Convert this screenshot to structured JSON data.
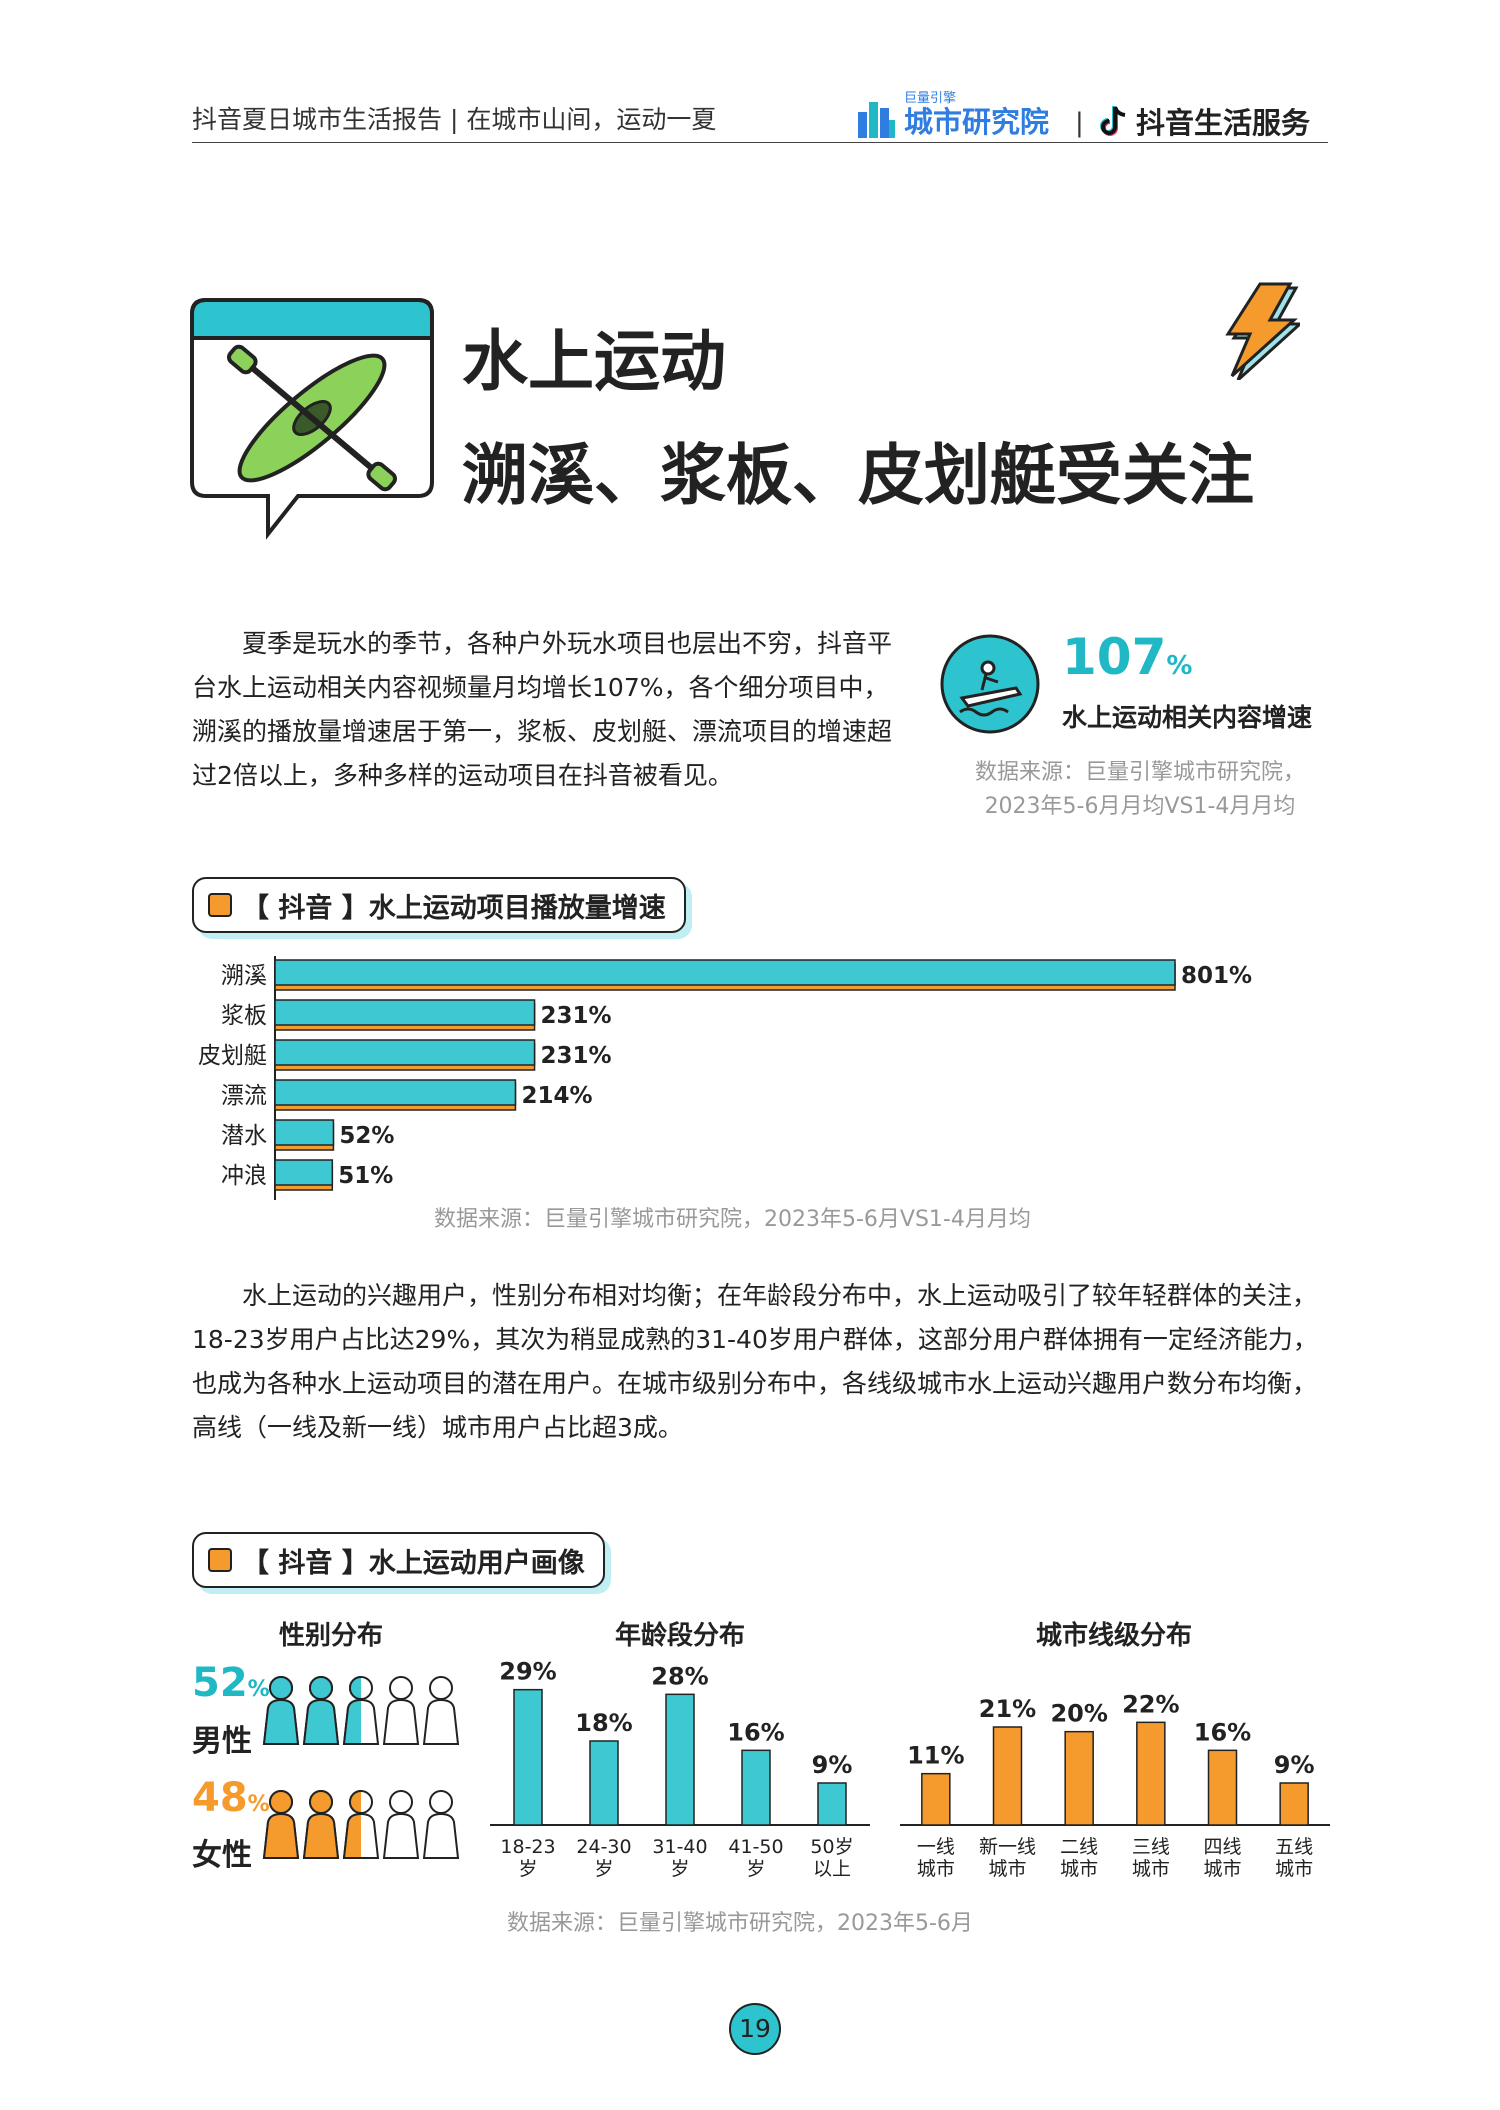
{
  "header": {
    "report_title": "抖音夏日城市生活报告 | 在城市山间，运动一夏",
    "logo_small": "巨量引擎",
    "logo_main": "城市研究院",
    "separator": "|",
    "logo2": "抖音生活服务"
  },
  "section": {
    "title_line1": "水上运动",
    "title_line2": "溯溪、浆板、皮划艇受关注",
    "icon": "kayak-icon"
  },
  "intro": {
    "paragraph": "夏季是玩水的季节，各种户外玩水项目也层出不穷，抖音平台水上运动相关内容视频量月均增长107%，各个细分项目中，溯溪的播放量增速居于第一，浆板、皮划艇、漂流项目的增速超过2倍以上，多种多样的运动项目在抖音被看见。"
  },
  "highlight": {
    "value": "107",
    "unit": "%",
    "label": "水上运动相关内容增速",
    "source": "数据来源：巨量引擎城市研究院，2023年5-6月月均VS1-4月月均"
  },
  "chart1_header": "【 抖音 】水上运动项目播放量增速",
  "chart1_source": "数据来源：巨量引擎城市研究院，2023年5-6月VS1-4月月均",
  "paragraph2": "水上运动的兴趣用户，性别分布相对均衡；在年龄段分布中，水上运动吸引了较年轻群体的关注，18-23岁用户占比达29%，其次为稍显成熟的31-40岁用户群体，这部分用户群体拥有一定经济能力，也成为各种水上运动项目的潜在用户。在城市级别分布中，各线级城市水上运动兴趣用户数分布均衡，高线（一线及新一线）城市用户占比超3成。",
  "chart2_header": "【 抖音 】水上运动用户画像",
  "chart2_source": "数据来源：巨量引擎城市研究院，2023年5-6月",
  "colors": {
    "teal": "#3ec9d2",
    "orange": "#f59a2d",
    "ink": "#222222"
  },
  "chart_data": [
    {
      "type": "bar",
      "orientation": "horizontal",
      "categories": [
        "溯溪",
        "浆板",
        "皮划艇",
        "漂流",
        "潜水",
        "冲浪"
      ],
      "values": [
        801,
        231,
        231,
        214,
        52,
        51
      ],
      "value_labels": [
        "801%",
        "231%",
        "231%",
        "214%",
        "52%",
        "51%"
      ],
      "unit": "%"
    },
    {
      "type": "pictogram",
      "title": "性别分布",
      "series": [
        {
          "name": "男性",
          "value": 52,
          "label": "52",
          "unit": "%",
          "color": "#3ec9d2"
        },
        {
          "name": "女性",
          "value": 48,
          "label": "48",
          "unit": "%",
          "color": "#f59a2d"
        }
      ]
    },
    {
      "type": "bar",
      "title": "年龄段分布",
      "categories": [
        [
          "18-23",
          "岁"
        ],
        [
          "24-30",
          "岁"
        ],
        [
          "31-40",
          "岁"
        ],
        [
          "41-50",
          "岁"
        ],
        [
          "50岁",
          "以上"
        ]
      ],
      "values": [
        29,
        18,
        28,
        16,
        9
      ],
      "value_labels": [
        "29%",
        "18%",
        "28%",
        "16%",
        "9%"
      ],
      "color": "#3ec9d2"
    },
    {
      "type": "bar",
      "title": "城市线级分布",
      "categories": [
        [
          "一线",
          "城市"
        ],
        [
          "新一线",
          "城市"
        ],
        [
          "二线",
          "城市"
        ],
        [
          "三线",
          "城市"
        ],
        [
          "四线",
          "城市"
        ],
        [
          "五线",
          "城市"
        ]
      ],
      "values": [
        11,
        21,
        20,
        22,
        16,
        9
      ],
      "value_labels": [
        "11%",
        "21%",
        "20%",
        "22%",
        "16%",
        "9%"
      ],
      "color": "#f59a2d"
    }
  ],
  "page_number": "19"
}
